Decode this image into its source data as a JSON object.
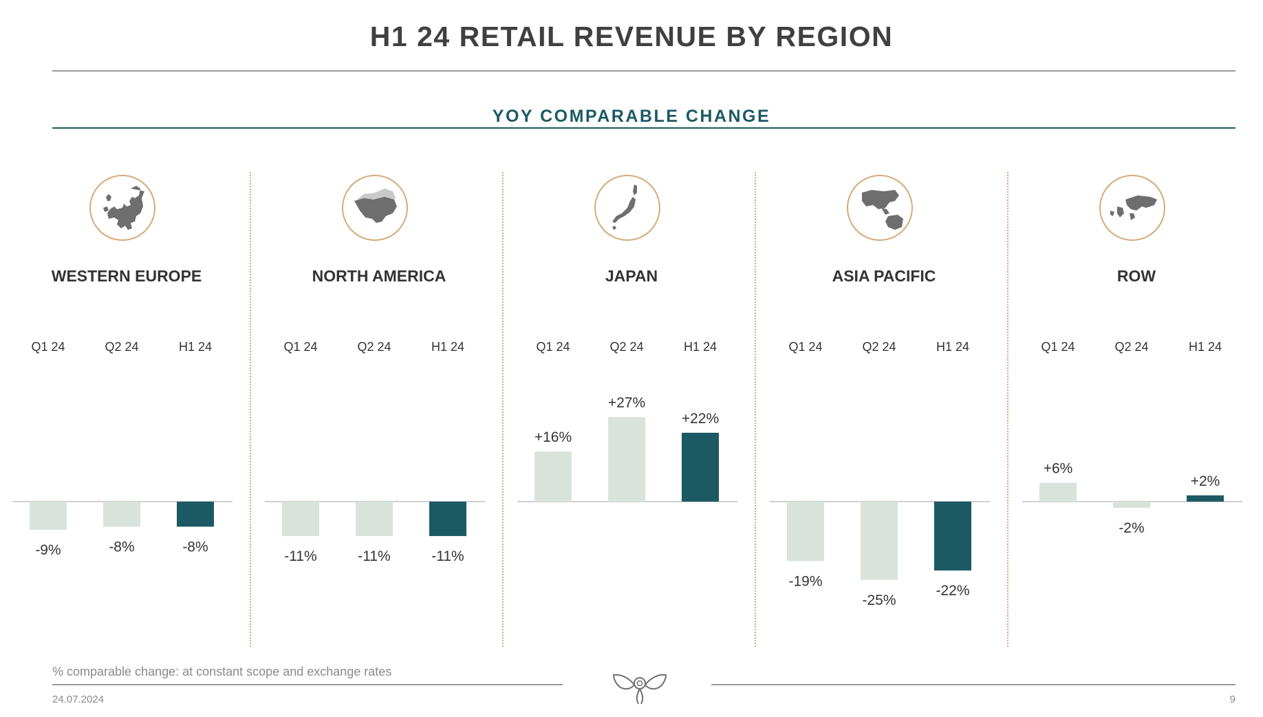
{
  "title": "H1 24 RETAIL REVENUE BY REGION",
  "subtitle": "YOY COMPARABLE CHANGE",
  "footnote": "% comparable change: at constant scope and exchange rates",
  "date": "24.07.2024",
  "page_number": "9",
  "colors": {
    "quarter_bar": "#d9e3dc",
    "half_bar": "#1b5963",
    "accent": "#1b5963",
    "icon_ring": "#d6aa78"
  },
  "regions": [
    {
      "name": "WESTERN EUROPE",
      "icon": "europe-map-icon"
    },
    {
      "name": "NORTH AMERICA",
      "icon": "north-america-map-icon"
    },
    {
      "name": "JAPAN",
      "icon": "japan-map-icon"
    },
    {
      "name": "ASIA PACIFIC",
      "icon": "asia-pacific-map-icon"
    },
    {
      "name": "ROW",
      "icon": "world-map-icon"
    }
  ],
  "chart_data": [
    {
      "type": "bar",
      "region": "WESTERN EUROPE",
      "categories": [
        "Q1 24",
        "Q2 24",
        "H1 24"
      ],
      "values": [
        -9,
        -8,
        -8
      ],
      "labels": [
        "-9%",
        "-8%",
        "-8%"
      ]
    },
    {
      "type": "bar",
      "region": "NORTH AMERICA",
      "categories": [
        "Q1 24",
        "Q2 24",
        "H1 24"
      ],
      "values": [
        -11,
        -11,
        -11
      ],
      "labels": [
        "-11%",
        "-11%",
        "-11%"
      ]
    },
    {
      "type": "bar",
      "region": "JAPAN",
      "categories": [
        "Q1 24",
        "Q2 24",
        "H1 24"
      ],
      "values": [
        16,
        27,
        22
      ],
      "labels": [
        "+16%",
        "+27%",
        "+22%"
      ]
    },
    {
      "type": "bar",
      "region": "ASIA PACIFIC",
      "categories": [
        "Q1 24",
        "Q2 24",
        "H1 24"
      ],
      "values": [
        -19,
        -25,
        -22
      ],
      "labels": [
        "-19%",
        "-25%",
        "-22%"
      ]
    },
    {
      "type": "bar",
      "region": "ROW",
      "categories": [
        "Q1 24",
        "Q2 24",
        "H1 24"
      ],
      "values": [
        6,
        -2,
        2
      ],
      "labels": [
        "+6%",
        "-2%",
        "+2%"
      ]
    }
  ]
}
